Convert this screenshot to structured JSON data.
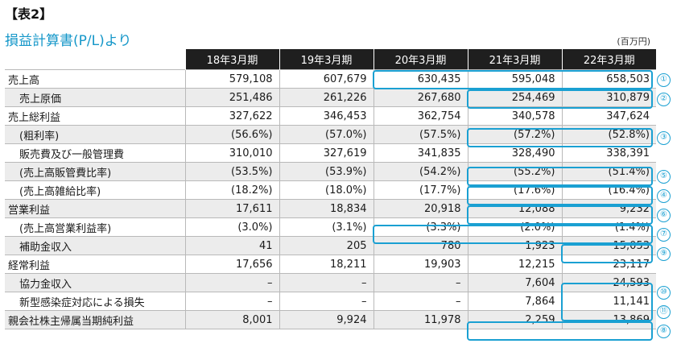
{
  "heading": "【表2】",
  "subtitle": "損益計算書(P/L)より",
  "unit": "(百万円)",
  "columns": [
    "18年3月期",
    "19年3月期",
    "20年3月期",
    "21年3月期",
    "22年3月期"
  ],
  "rows": [
    {
      "label": "売上高",
      "values": [
        "579,108",
        "607,679",
        "630,435",
        "595,048",
        "658,503"
      ]
    },
    {
      "label": "売上原価",
      "values": [
        "251,486",
        "261,226",
        "267,680",
        "254,469",
        "310,879"
      ]
    },
    {
      "label": "売上総利益",
      "values": [
        "327,622",
        "346,453",
        "362,754",
        "340,578",
        "347,624"
      ]
    },
    {
      "label": "(粗利率)",
      "values": [
        "(56.6%)",
        "(57.0%)",
        "(57.5%)",
        "(57.2%)",
        "(52.8%)"
      ]
    },
    {
      "label": "販売費及び一般管理費",
      "values": [
        "310,010",
        "327,619",
        "341,835",
        "328,490",
        "338,391"
      ]
    },
    {
      "label": "(売上高販管費比率)",
      "values": [
        "(53.5%)",
        "(53.9%)",
        "(54.2%)",
        "(55.2%)",
        "(51.4%)"
      ]
    },
    {
      "label": "(売上高雑給比率)",
      "values": [
        "(18.2%)",
        "(18.0%)",
        "(17.7%)",
        "(17.6%)",
        "(16.4%)"
      ]
    },
    {
      "label": "営業利益",
      "values": [
        "17,611",
        "18,834",
        "20,918",
        "12,088",
        "9,232"
      ]
    },
    {
      "label": "(売上高営業利益率)",
      "values": [
        "(3.0%)",
        "(3.1%)",
        "(3.3%)",
        "(2.0%)",
        "(1.4%)"
      ]
    },
    {
      "label": "補助金収入",
      "values": [
        "41",
        "205",
        "780",
        "1,923",
        "15,053"
      ]
    },
    {
      "label": "経常利益",
      "values": [
        "17,656",
        "18,211",
        "19,903",
        "12,215",
        "23,117"
      ]
    },
    {
      "label": "協力金収入",
      "values": [
        "–",
        "–",
        "–",
        "7,604",
        "24,593"
      ]
    },
    {
      "label": "新型感染症対応による損失",
      "values": [
        "–",
        "–",
        "–",
        "7,864",
        "11,141"
      ]
    },
    {
      "label": "親会社株主帰属当期純利益",
      "values": [
        "8,001",
        "9,924",
        "11,978",
        "2,259",
        "13,869"
      ]
    }
  ],
  "markers": [
    "①",
    "②",
    "⑥",
    "③",
    "⑤",
    "④",
    "⑦",
    "⑨",
    "⑩",
    "⑪",
    "⑧"
  ],
  "accent_color": "#1aa0d2"
}
